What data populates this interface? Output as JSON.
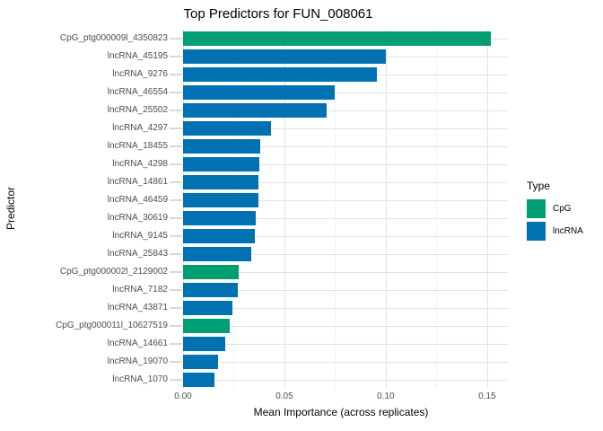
{
  "chart_data": {
    "type": "bar",
    "orientation": "horizontal",
    "title": "Top Predictors for FUN_008061",
    "xlabel": "Mean Importance (across replicates)",
    "ylabel": "Predictor",
    "xlim": [
      0,
      0.16
    ],
    "grid": true,
    "legend_position": "right",
    "x_major_ticks": [
      {
        "value": 0.0,
        "label": "0.00"
      },
      {
        "value": 0.05,
        "label": "0.05"
      },
      {
        "value": 0.1,
        "label": "0.10"
      },
      {
        "value": 0.15,
        "label": "0.15"
      }
    ],
    "x_minor_ticks": [
      0.025,
      0.075,
      0.125
    ],
    "bars": [
      {
        "label": "CpG_ptg000009l_4350823",
        "type": "CpG",
        "value": 0.152
      },
      {
        "label": "lncRNA_45195",
        "type": "lncRNA",
        "value": 0.1
      },
      {
        "label": "lncRNA_9276",
        "type": "lncRNA",
        "value": 0.0955
      },
      {
        "label": "lncRNA_46554",
        "type": "lncRNA",
        "value": 0.075
      },
      {
        "label": "lncRNA_25502",
        "type": "lncRNA",
        "value": 0.071
      },
      {
        "label": "lncRNA_4297",
        "type": "lncRNA",
        "value": 0.0432
      },
      {
        "label": "lncRNA_18455",
        "type": "lncRNA",
        "value": 0.038
      },
      {
        "label": "lncRNA_4298",
        "type": "lncRNA",
        "value": 0.0377
      },
      {
        "label": "lncRNA_14861",
        "type": "lncRNA",
        "value": 0.0374
      },
      {
        "label": "lncRNA_46459",
        "type": "lncRNA",
        "value": 0.037
      },
      {
        "label": "lncRNA_30619",
        "type": "lncRNA",
        "value": 0.036
      },
      {
        "label": "lncRNA_9145",
        "type": "lncRNA",
        "value": 0.0355
      },
      {
        "label": "lncRNA_25843",
        "type": "lncRNA",
        "value": 0.0337
      },
      {
        "label": "CpG_ptg000002l_2129002",
        "type": "CpG",
        "value": 0.0275
      },
      {
        "label": "lncRNA_7182",
        "type": "lncRNA",
        "value": 0.027
      },
      {
        "label": "lncRNA_43871",
        "type": "lncRNA",
        "value": 0.0245
      },
      {
        "label": "CpG_ptg000011l_10627519",
        "type": "CpG",
        "value": 0.023
      },
      {
        "label": "lncRNA_14661",
        "type": "lncRNA",
        "value": 0.021
      },
      {
        "label": "lncRNA_19070",
        "type": "lncRNA",
        "value": 0.0174
      },
      {
        "label": "lncRNA_1070",
        "type": "lncRNA",
        "value": 0.0156
      }
    ],
    "legend": {
      "title": "Type",
      "entries": [
        {
          "label": "CpG",
          "color": "#009E73"
        },
        {
          "label": "lncRNA",
          "color": "#0072B2"
        }
      ]
    },
    "colors": {
      "CpG": "#009E73",
      "lncRNA": "#0072B2",
      "grid_major": "#e2e2e2",
      "grid_minor": "#f0f0f0",
      "axis_tick": "#d9d9d9",
      "axis_text": "#4d4d4d",
      "title_text": "#000000",
      "background": "#ffffff"
    }
  }
}
